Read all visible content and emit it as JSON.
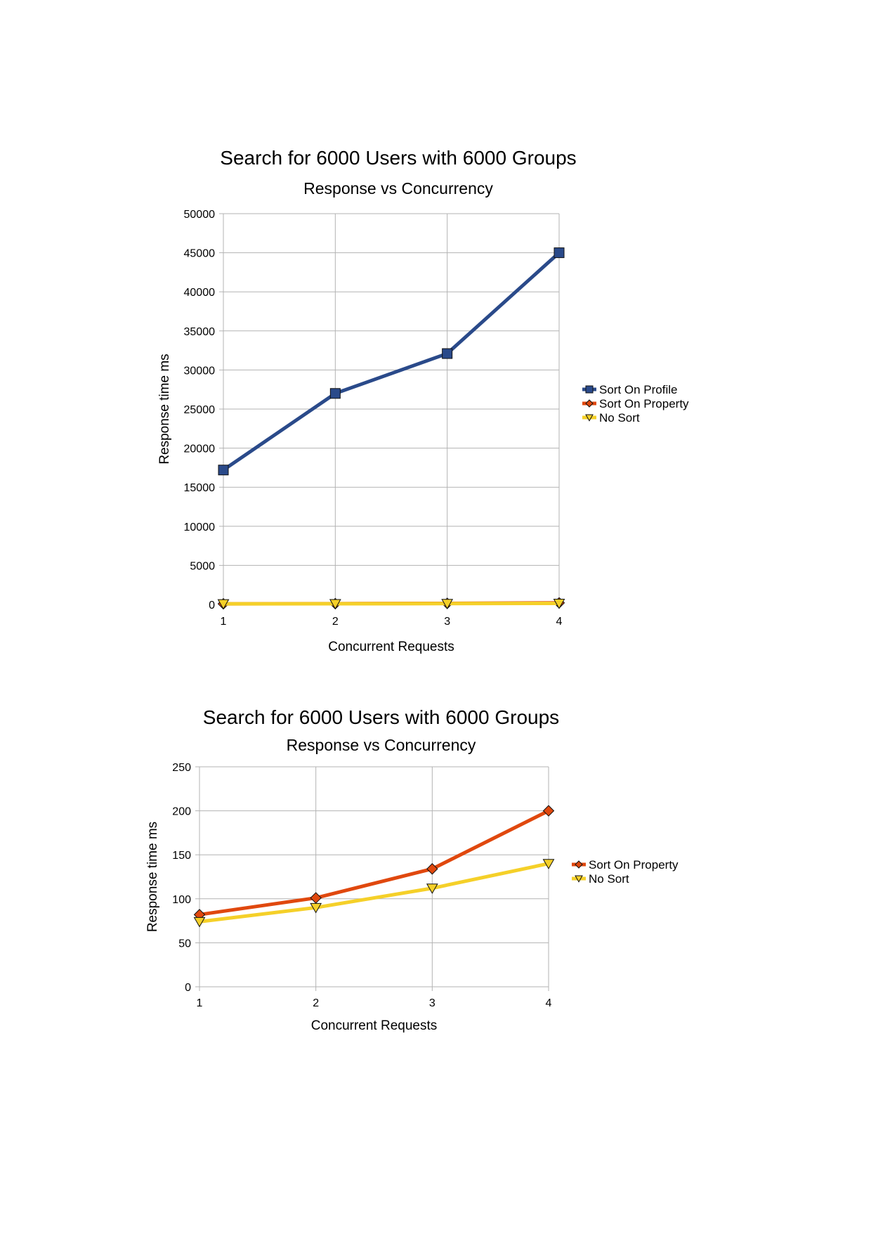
{
  "chart_data": [
    {
      "type": "line",
      "title": "Search for 6000 Users with 6000 Groups",
      "subtitle": "Response vs Concurrency",
      "xlabel": "Concurrent Requests",
      "ylabel": "Response time ms",
      "categories": [
        "1",
        "2",
        "3",
        "4"
      ],
      "ylim": [
        0,
        50000
      ],
      "yticks": [
        "0",
        "5000",
        "10000",
        "15000",
        "20000",
        "25000",
        "30000",
        "35000",
        "40000",
        "45000",
        "50000"
      ],
      "grid": true,
      "legend_position": "right",
      "series": [
        {
          "name": "Sort On Profile",
          "values": [
            17200,
            27000,
            32100,
            45000
          ],
          "color": "#2a4a8a",
          "marker": "square"
        },
        {
          "name": "Sort On Property",
          "values": [
            82,
            101,
            134,
            200
          ],
          "color": "#e0480e",
          "marker": "diamond"
        },
        {
          "name": "No Sort",
          "values": [
            74,
            90,
            112,
            140
          ],
          "color": "#f5d029",
          "marker": "triangle-down"
        }
      ]
    },
    {
      "type": "line",
      "title": "Search for 6000 Users with 6000 Groups",
      "subtitle": "Response vs Concurrency",
      "xlabel": "Concurrent Requests",
      "ylabel": "Response time ms",
      "categories": [
        "1",
        "2",
        "3",
        "4"
      ],
      "ylim": [
        0,
        250
      ],
      "yticks": [
        "0",
        "50",
        "100",
        "150",
        "200",
        "250"
      ],
      "grid": true,
      "legend_position": "right",
      "series": [
        {
          "name": "Sort On Property",
          "values": [
            82,
            101,
            134,
            200
          ],
          "color": "#e0480e",
          "marker": "diamond"
        },
        {
          "name": "No Sort",
          "values": [
            74,
            90,
            112,
            140
          ],
          "color": "#f5d029",
          "marker": "triangle-down"
        }
      ]
    }
  ]
}
